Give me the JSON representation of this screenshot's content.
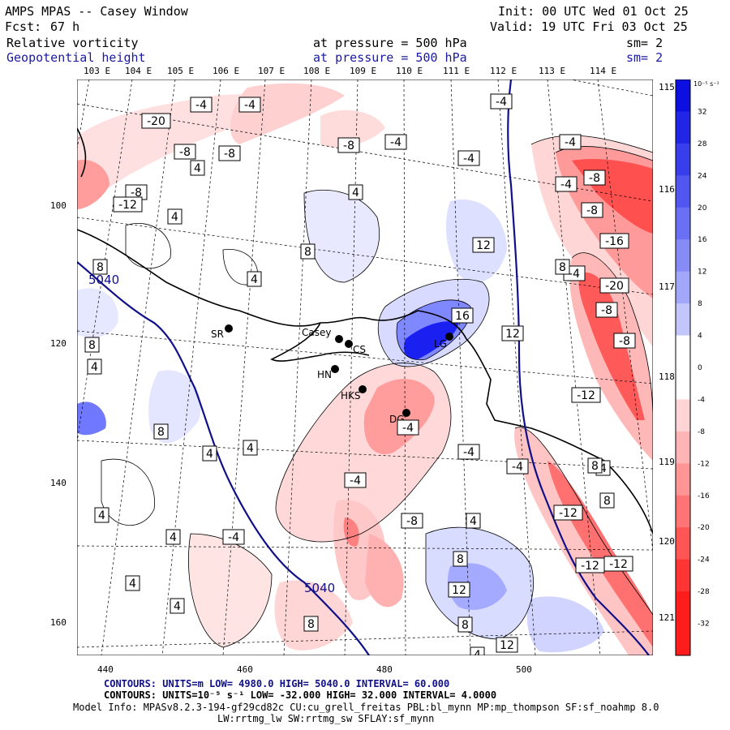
{
  "header": {
    "model": "AMPS MPAS -- Casey Window",
    "init": "Init: 00 UTC Wed 01 Oct 25",
    "fcst_label": "Fcst:",
    "fcst_value": "67 h",
    "valid": "Valid: 19 UTC Fri 03 Oct 25",
    "field1": "Relative vorticity",
    "field1_level": "at pressure =  500 hPa",
    "field1_sm": "sm= 2",
    "field2": "Geopotential height",
    "field2_level": "at pressure =  500 hPa",
    "field2_sm": "sm= 2"
  },
  "longitudes_top": [
    "103 E",
    "104 E",
    "105 E",
    "106 E",
    "107 E",
    "108 E",
    "109 E",
    "110 E",
    "111 E",
    "112 E",
    "113 E",
    "114 E"
  ],
  "latitudes_right": [
    "115 E",
    "116 E",
    "117 E",
    "118 E",
    "119 E",
    "120 E",
    "121 E"
  ],
  "x_ticks": [
    "440",
    "460",
    "480",
    "500"
  ],
  "y_ticks": [
    "100",
    "120",
    "140",
    "160"
  ],
  "stations": [
    "SR",
    "Casey",
    "CS",
    "HN",
    "HKS",
    "DG",
    "LG"
  ],
  "height_labels": [
    "5040",
    "5040"
  ],
  "vort_labels": [
    "-4",
    "-4",
    "-4",
    "-4",
    "-4",
    "-4",
    "-4",
    "-4",
    "-4",
    "-4",
    "-4",
    "-4",
    "-4",
    "-8",
    "-8",
    "-8",
    "-8",
    "-8",
    "-8",
    "-8",
    "-8",
    "-8",
    "-8",
    "-12",
    "-12",
    "-12",
    "-12",
    "-12",
    "-16",
    "-16",
    "-20",
    "-20",
    "4",
    "4",
    "4",
    "4",
    "4",
    "4",
    "4",
    "4",
    "4",
    "4",
    "4",
    "4",
    "4",
    "4",
    "8",
    "8",
    "8",
    "8",
    "8",
    "8",
    "8",
    "8",
    "8",
    "8",
    "12",
    "12",
    "12",
    "12",
    "16"
  ],
  "colorbar": {
    "unit": "10⁻⁵ s⁻¹",
    "ticks": [
      "32",
      "28",
      "24",
      "20",
      "16",
      "12",
      "8",
      "4",
      "0",
      "-4",
      "-8",
      "-12",
      "-16",
      "-20",
      "-24",
      "-28",
      "-32"
    ]
  },
  "footer": {
    "line1": "CONTOURS:  UNITS=m  LOW=   4980.0          HIGH=  5040.0          INTERVAL=   60.000",
    "line2": "CONTOURS:  UNITS=10⁻⁵ s⁻¹  LOW= -32.000          HIGH=  32.000          INTERVAL=   4.0000",
    "line3": "Model Info: MPASv8.2.3-194-gf29cd82c CU:cu_grell_freitas PBL:bl_mynn MP:mp_thompson SF:sf_noahmp 8.0",
    "line4": "LW:rrtmg_lw SW:rrtmg_sw SFLAY:sf_mynn"
  },
  "colors": {
    "blue_strong": "#0b10e0",
    "red_strong": "#ff1c1c",
    "height_contour": "#101088"
  }
}
